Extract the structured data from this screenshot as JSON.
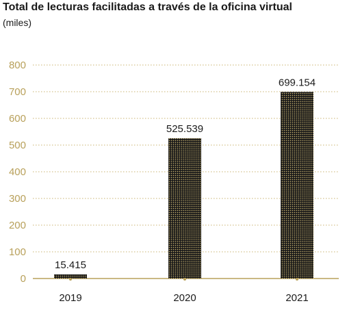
{
  "chart_data": {
    "type": "bar",
    "title": "Total de lecturas facilitadas a través de la oficina virtual",
    "subtitle": "(miles)",
    "categories": [
      "2019",
      "2020",
      "2021"
    ],
    "values": [
      15.415,
      525.539,
      699.154
    ],
    "data_labels": [
      "15.415",
      "525.539",
      "699.154"
    ],
    "ylim": [
      0,
      800
    ],
    "yticks": [
      0,
      100,
      200,
      300,
      400,
      500,
      600,
      700,
      800
    ],
    "grid": true,
    "legend": "none",
    "colors": {
      "bar_fill": "#1a1a1a",
      "bar_dots": "#c9b370",
      "grid": "#c9b370",
      "axis": "#b8a05a",
      "ytick_text": "#b8a05a"
    }
  }
}
